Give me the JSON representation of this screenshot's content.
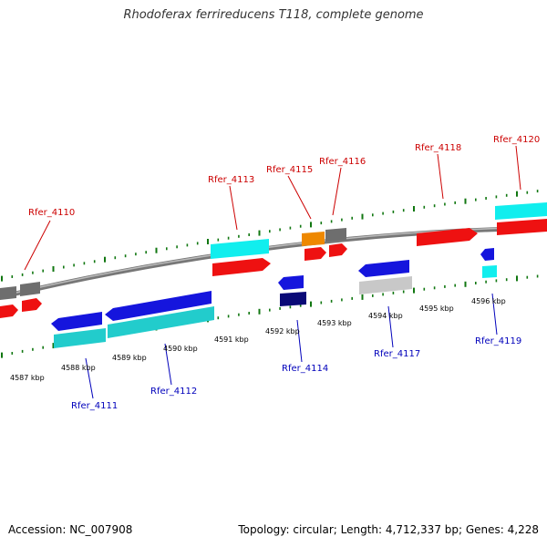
{
  "title": "Rhodoferax ferrireducens T118, complete genome",
  "footer": {
    "accession": "Accession: NC_007908",
    "summary": "Topology: circular; Length: 4,712,337 bp; Genes: 4,228"
  },
  "colors": {
    "backbone": "#888888",
    "tick": "#117711",
    "label_top": "#cc0000",
    "label_bottom": "#0000bb",
    "red": "#ee1111",
    "grey": "#6e6e6e",
    "cyan": "#11eeee",
    "orange": "#ee8800",
    "blue": "#1515dd",
    "dark_cyan": "#22cccc",
    "navy": "#0a0a77",
    "light_grey": "#c8c8c8"
  },
  "scale_labels": [
    "4587 kbp",
    "4588 kbp",
    "4589 kbp",
    "4590 kbp",
    "4591 kbp",
    "4592 kbp",
    "4593 kbp",
    "4594 kbp",
    "4595 kbp",
    "4596 kbp"
  ],
  "gene_labels_top": [
    "Rfer_4110",
    "Rfer_4113",
    "Rfer_4115",
    "Rfer_4116",
    "Rfer_4118",
    "Rfer_4120"
  ],
  "gene_labels_bottom": [
    "Rfer_4111",
    "Rfer_4112",
    "Rfer_4114",
    "Rfer_4117",
    "Rfer_4119"
  ]
}
